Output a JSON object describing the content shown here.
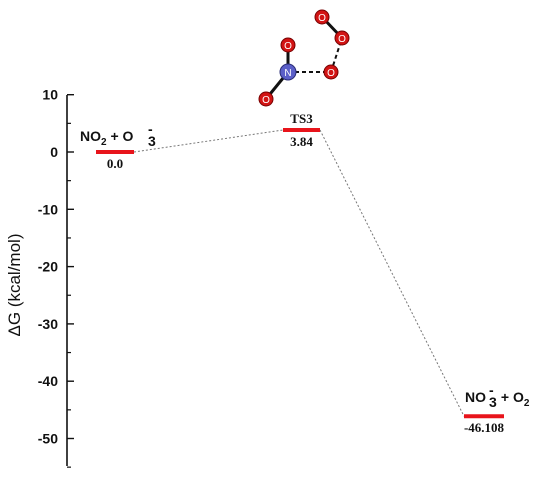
{
  "chart_data": {
    "type": "line",
    "ylabel": "ΔG (kcal/mol)",
    "ylim": [
      -55,
      10
    ],
    "yticks": [
      "10",
      "0",
      "-10",
      "-20",
      "-30",
      "-40",
      "-50"
    ],
    "grid": false,
    "levels": [
      {
        "value": 0.0,
        "value_label": "0.0"
      },
      {
        "value": 3.84,
        "value_label": "3.84",
        "name": "TS3"
      },
      {
        "value": -46.108,
        "value_label": "-46.108"
      }
    ],
    "species_labels": {
      "reactant": {
        "part1": "NO",
        "sub1": "2",
        "plus": " + ",
        "part2": "O",
        "sub2": "3",
        "sup2": "-"
      },
      "product": {
        "part1": "NO",
        "sub1": "3",
        "sup1": "-",
        "plus": " + ",
        "part2": "O",
        "sub2": "2"
      }
    },
    "structure_atoms": [
      "O",
      "O",
      "O",
      "O",
      "N",
      "O"
    ],
    "colors": {
      "level": "#e8141b",
      "connector": "#777777",
      "nitrogen": "#5b5fc8",
      "oxygen": "#d21414",
      "bond": "#111111"
    }
  }
}
